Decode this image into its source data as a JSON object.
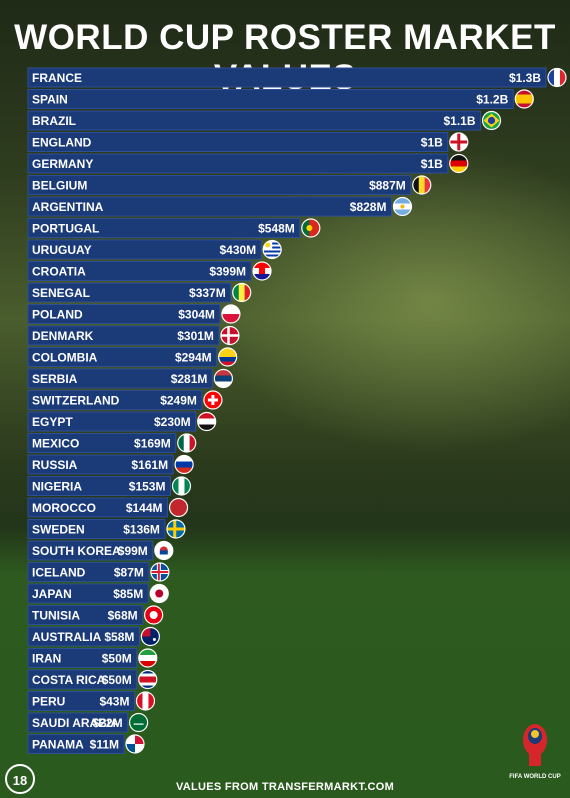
{
  "title": "WORLD CUP ROSTER MARKET VALUES",
  "footer": "VALUES FROM TRANSFERMARKT.COM",
  "logo_left_text": "18",
  "logo_right_text": "FIFA WORLD CUP",
  "colors": {
    "bar": "#1b3a78",
    "bar_border": "#2c4f96",
    "text": "#ffffff"
  },
  "chart_data": {
    "type": "bar",
    "orientation": "horizontal",
    "unit": "USD",
    "categories": [
      "FRANCE",
      "SPAIN",
      "BRAZIL",
      "ENGLAND",
      "GERMANY",
      "BELGIUM",
      "ARGENTINA",
      "PORTUGAL",
      "URUGUAY",
      "CROATIA",
      "SENEGAL",
      "POLAND",
      "DENMARK",
      "COLOMBIA",
      "SERBIA",
      "SWITZERLAND",
      "EGYPT",
      "MEXICO",
      "RUSSIA",
      "NIGERIA",
      "MOROCCO",
      "SWEDEN",
      "SOUTH KOREA",
      "ICELAND",
      "JAPAN",
      "TUNISIA",
      "AUSTRALIA",
      "IRAN",
      "COSTA RICA",
      "PERU",
      "SAUDI ARABIA",
      "PANAMA"
    ],
    "labels": [
      "$1.3B",
      "$1.2B",
      "$1.1B",
      "$1B",
      "$1B",
      "$887M",
      "$828M",
      "$548M",
      "$430M",
      "$399M",
      "$337M",
      "$304M",
      "$301M",
      "$294M",
      "$281M",
      "$249M",
      "$230M",
      "$169M",
      "$161M",
      "$153M",
      "$144M",
      "$136M",
      "$99M",
      "$87M",
      "$85M",
      "$68M",
      "$58M",
      "$50M",
      "$50M",
      "$43M",
      "$22M",
      "$11M"
    ],
    "values": [
      1300,
      1200,
      1100,
      1000,
      1000,
      887,
      828,
      548,
      430,
      399,
      337,
      304,
      301,
      294,
      281,
      249,
      230,
      169,
      161,
      153,
      144,
      136,
      99,
      87,
      85,
      68,
      58,
      50,
      50,
      43,
      22,
      11
    ],
    "value_unit": "million USD",
    "flags": [
      "france",
      "spain",
      "brazil",
      "england",
      "germany",
      "belgium",
      "argentina",
      "portugal",
      "uruguay",
      "croatia",
      "senegal",
      "poland",
      "denmark",
      "colombia",
      "serbia",
      "switzerland",
      "egypt",
      "mexico",
      "russia",
      "nigeria",
      "morocco",
      "sweden",
      "south-korea",
      "iceland",
      "japan",
      "tunisia",
      "australia",
      "iran",
      "costa-rica",
      "peru",
      "saudi-arabia",
      "panama"
    ]
  }
}
